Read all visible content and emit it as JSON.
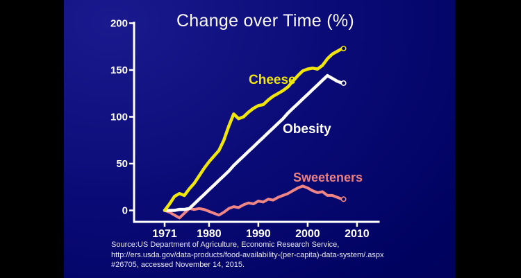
{
  "slide": {
    "title": "Change over Time (%)"
  },
  "source": {
    "lines": [
      "Source:US  Department of Agriculture, Economic Research Service,",
      "http://ers.usda.gov/data-products/food-availability-(per-capita)-data-system/.aspx",
      "#26705, accessed November 14, 2015."
    ]
  },
  "colors": {
    "background": "#000266",
    "axis": "#ffffff",
    "cheese": "#f0e60a",
    "obesity": "#ffffff",
    "sweeteners": "#ef8585"
  },
  "chart_data": {
    "type": "line",
    "title": "Change over Time (%)",
    "xlabel": "",
    "ylabel": "",
    "x": [
      1971,
      1972,
      1973,
      1974,
      1975,
      1976,
      1977,
      1978,
      1979,
      1980,
      1981,
      1982,
      1983,
      1984,
      1985,
      1986,
      1987,
      1988,
      1989,
      1990,
      1991,
      1992,
      1993,
      1994,
      1995,
      1996,
      1997,
      1998,
      1999,
      2000,
      2001,
      2002,
      2003,
      2004,
      2005,
      2006,
      2007
    ],
    "x_ticks": [
      1971,
      1980,
      1990,
      2000,
      2010
    ],
    "y_ticks": [
      0,
      50,
      100,
      150,
      200
    ],
    "xlim": [
      1965,
      2016
    ],
    "ylim": [
      -13,
      200
    ],
    "grid": false,
    "legend": "inline-labels",
    "end_markers": true,
    "series": [
      {
        "name": "Cheese",
        "color": "#f0e60a",
        "values": [
          0,
          7,
          15,
          18,
          16,
          23,
          29,
          37,
          45,
          52,
          58,
          64,
          75,
          90,
          103,
          98,
          100,
          105,
          109,
          112,
          113,
          118,
          122,
          125,
          128,
          132,
          138,
          144,
          149,
          151,
          152,
          151,
          155,
          162,
          167,
          170,
          173
        ]
      },
      {
        "name": "Obesity",
        "color": "#ffffff",
        "values": [
          0,
          0,
          0,
          1,
          1,
          2,
          7,
          12,
          17,
          22,
          27,
          32,
          37,
          42,
          48,
          53,
          58,
          63,
          68,
          73,
          78,
          83,
          88,
          93,
          98,
          104,
          109,
          114,
          119,
          124,
          129,
          134,
          139,
          144,
          141,
          138,
          136
        ]
      },
      {
        "name": "Sweeteners",
        "color": "#ef8585",
        "values": [
          0,
          -2,
          -5,
          -8,
          -3,
          2,
          1,
          2,
          1,
          -1,
          -3,
          -5,
          -2,
          2,
          4,
          3,
          6,
          8,
          7,
          10,
          9,
          12,
          11,
          14,
          16,
          18,
          21,
          24,
          26,
          24,
          21,
          19,
          20,
          16,
          16,
          14,
          12
        ]
      }
    ]
  }
}
